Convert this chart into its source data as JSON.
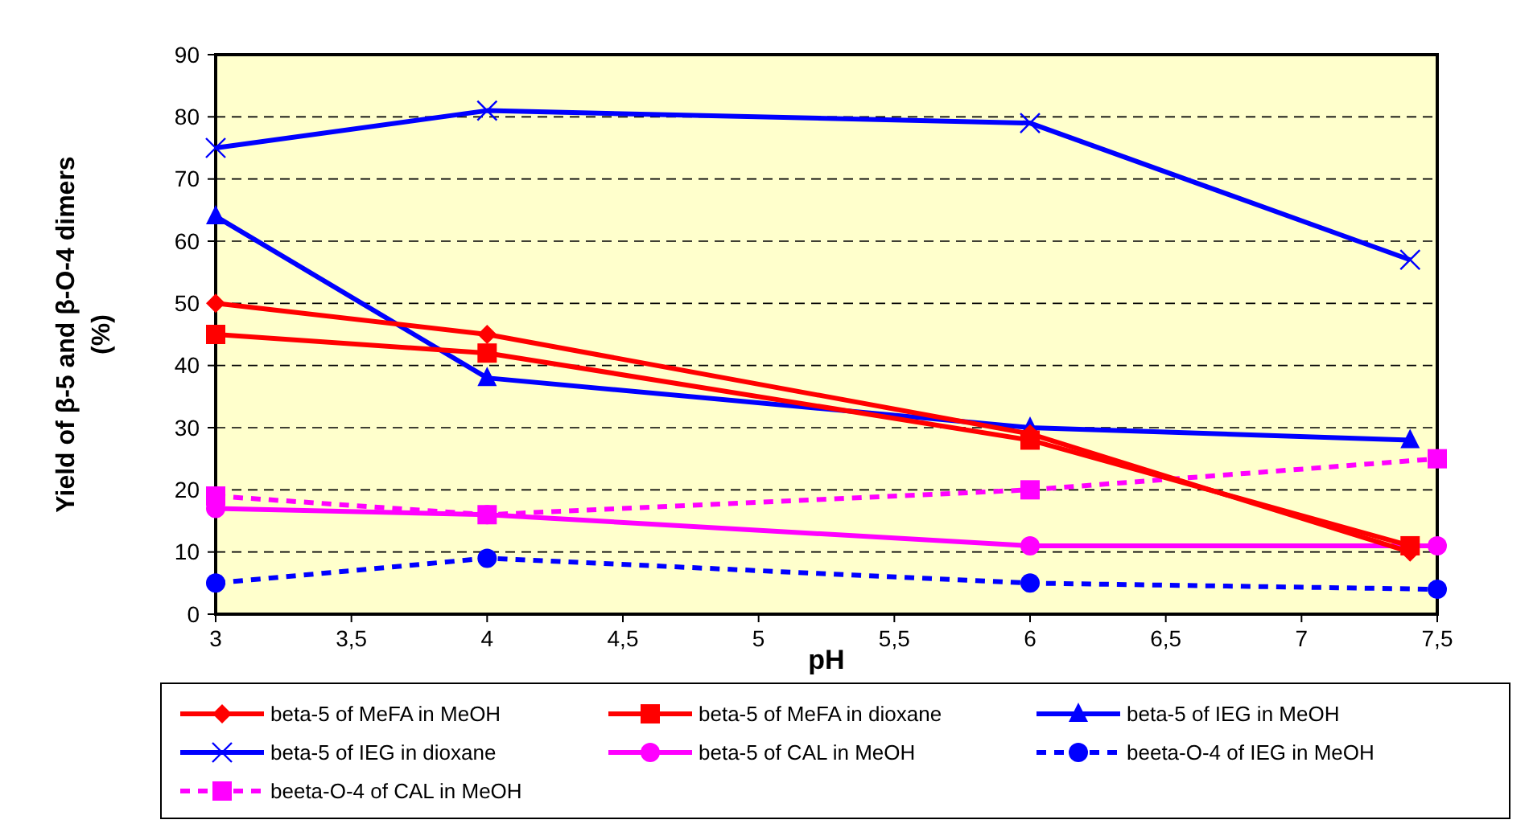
{
  "chart_data": {
    "type": "line",
    "xlabel": "pH",
    "ylabel": "Yield of β-5 and β-O-4 dimers (%)",
    "xlim": [
      3,
      7.5
    ],
    "ylim": [
      0,
      90
    ],
    "xticks": [
      3,
      {
        "value": 3.5,
        "label": "3,5"
      },
      4,
      {
        "value": 4.5,
        "label": "4,5"
      },
      5,
      {
        "value": 5.5,
        "label": "5,5"
      },
      6,
      {
        "value": 6.5,
        "label": "6,5"
      },
      7,
      {
        "value": 7.5,
        "label": "7,5"
      }
    ],
    "yticks": [
      0,
      10,
      20,
      30,
      40,
      50,
      60,
      70,
      80,
      90
    ],
    "grid": "y",
    "legend": "bottom",
    "series": [
      {
        "name": "beta-5 of MeFA in MeOH",
        "color": "#ff0000",
        "marker": "diamond",
        "line_style": "solid",
        "x": [
          3,
          4,
          6,
          7.4
        ],
        "values": [
          50,
          45,
          29,
          10
        ]
      },
      {
        "name": "beta-5 of MeFA in dioxane",
        "color": "#ff0000",
        "marker": "square",
        "line_style": "solid",
        "x": [
          3,
          4,
          6,
          7.4
        ],
        "values": [
          45,
          42,
          28,
          11
        ]
      },
      {
        "name": "beta-5 of IEG in MeOH",
        "color": "#0000ff",
        "marker": "triangle",
        "line_style": "solid",
        "x": [
          3,
          4,
          6,
          7.4
        ],
        "values": [
          64,
          38,
          30,
          28
        ]
      },
      {
        "name": "beta-5 of IEG in dioxane",
        "color": "#0000ff",
        "marker": "cross",
        "line_style": "solid",
        "x": [
          3,
          4,
          6,
          7.4
        ],
        "values": [
          75,
          81,
          79,
          57
        ]
      },
      {
        "name": "beta-5 of CAL in MeOH",
        "color": "#ff00ff",
        "marker": "circle",
        "line_style": "solid",
        "x": [
          3,
          4,
          6,
          7.5
        ],
        "values": [
          17,
          16,
          11,
          11
        ]
      },
      {
        "name": "beeta-O-4 of IEG in MeOH",
        "color": "#0000ff",
        "marker": "circle",
        "line_style": "dashed",
        "x": [
          3,
          4,
          6,
          7.5
        ],
        "values": [
          5,
          9,
          5,
          4
        ]
      },
      {
        "name": "beeta-O-4 of CAL in MeOH",
        "color": "#ff00ff",
        "marker": "square",
        "line_style": "dashed",
        "x": [
          3,
          4,
          6,
          7.5
        ],
        "values": [
          19,
          16,
          20,
          25
        ]
      }
    ]
  }
}
